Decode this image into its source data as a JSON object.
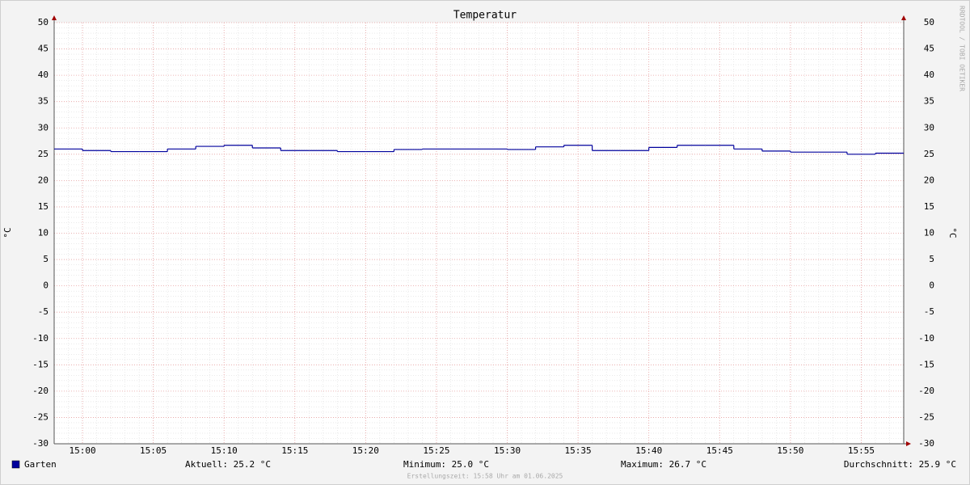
{
  "chart_data": {
    "type": "line",
    "title": "Temperatur",
    "y_label": "°C",
    "y2_label": "°C",
    "watermark": "RRDTOOL / TOBI OETIKER",
    "x": [
      "14:58",
      "15:00",
      "15:02",
      "15:04",
      "15:06",
      "15:08",
      "15:10",
      "15:12",
      "15:14",
      "15:16",
      "15:18",
      "15:20",
      "15:22",
      "15:24",
      "15:26",
      "15:28",
      "15:30",
      "15:32",
      "15:34",
      "15:36",
      "15:38",
      "15:40",
      "15:42",
      "15:44",
      "15:46",
      "15:48",
      "15:50",
      "15:52",
      "15:54",
      "15:56"
    ],
    "xlim": [
      "14:58",
      "15:58"
    ],
    "xticks": [
      "15:00",
      "15:05",
      "15:10",
      "15:15",
      "15:20",
      "15:25",
      "15:30",
      "15:35",
      "15:40",
      "15:45",
      "15:50",
      "15:55"
    ],
    "ylim": [
      -30,
      50
    ],
    "yticks": [
      -30,
      -25,
      -20,
      -15,
      -10,
      -5,
      0,
      5,
      10,
      15,
      20,
      25,
      30,
      35,
      40,
      45,
      50
    ],
    "grid": true,
    "series": [
      {
        "name": "Garten",
        "color": "#00009c",
        "values": [
          26.0,
          25.7,
          25.5,
          25.5,
          26.0,
          26.5,
          26.7,
          26.2,
          25.7,
          25.7,
          25.5,
          25.5,
          25.9,
          26.0,
          26.0,
          26.0,
          25.9,
          26.4,
          26.7,
          25.7,
          25.7,
          26.3,
          26.7,
          26.7,
          26.0,
          25.6,
          25.4,
          25.4,
          25.0,
          25.2
        ]
      }
    ],
    "legend_stats": [
      "Aktuell: 25.2 °C",
      "Minimum: 25.0 °C",
      "Maximum: 26.7 °C",
      "Durchschnitt: 25.9 °C"
    ],
    "footer": "Erstellungszeit: 15:58 Uhr am 01.06.2025"
  }
}
